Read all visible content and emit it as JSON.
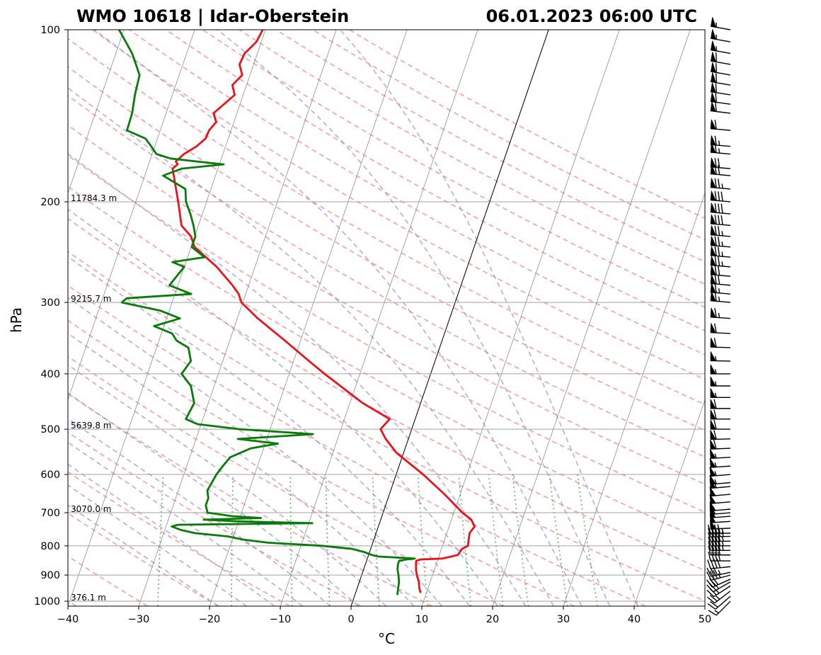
{
  "title_left": "WMO 10618 | Idar-Oberstein",
  "title_right": "06.01.2023 06:00 UTC",
  "chart_data": {
    "type": "line",
    "subtype": "skew-T log-p sounding",
    "xlabel": "°C",
    "ylabel": "hPa",
    "xlim": [
      -40,
      50
    ],
    "ylim": [
      1020,
      100
    ],
    "x_ticks": [
      -40,
      -30,
      -20,
      -10,
      0,
      10,
      20,
      30,
      40,
      50
    ],
    "y_ticks": [
      100,
      200,
      300,
      400,
      500,
      600,
      700,
      800,
      900,
      1000
    ],
    "height_labels": [
      {
        "p": 200,
        "text": "11784.3 m"
      },
      {
        "p": 300,
        "text": "9215.7 m"
      },
      {
        "p": 500,
        "text": "5639.8 m"
      },
      {
        "p": 700,
        "text": "3070.0 m"
      },
      {
        "p": 1000,
        "text": "376.1 m"
      }
    ],
    "series": [
      {
        "name": "Temperature",
        "color": "#e8141c",
        "p": [
          967,
          950,
          925,
          900,
          880,
          850,
          845,
          842,
          830,
          810,
          800,
          780,
          760,
          740,
          720,
          700,
          650,
          600,
          550,
          520,
          500,
          480,
          450,
          400,
          380,
          350,
          320,
          300,
          290,
          280,
          260,
          240,
          230,
          220,
          200,
          180,
          175,
          172,
          170,
          165,
          160,
          155,
          150,
          145,
          140,
          130,
          125,
          120,
          115,
          110,
          105,
          100
        ],
        "t": [
          9.2,
          8.8,
          8.4,
          7.8,
          7.4,
          7.0,
          7.6,
          10.6,
          12.6,
          12.9,
          13.6,
          13.4,
          13.2,
          13.6,
          12.8,
          11.2,
          7.8,
          3.8,
          -1.0,
          -3.2,
          -4.4,
          -3.6,
          -8.2,
          -15.0,
          -17.8,
          -22.2,
          -27.1,
          -30.2,
          -31.0,
          -32.3,
          -35.4,
          -39.5,
          -40.5,
          -42.4,
          -44.0,
          -45.9,
          -46.4,
          -45.9,
          -46.3,
          -45.5,
          -44.1,
          -43.2,
          -43.1,
          -42.5,
          -43.3,
          -41.2,
          -42.0,
          -41.1,
          -42.0,
          -41.8,
          -40.7,
          -40.4
        ]
      },
      {
        "name": "Dewpoint",
        "color": "#0a7a0a",
        "p": [
          975,
          950,
          925,
          900,
          880,
          862,
          850,
          845,
          842,
          835,
          830,
          820,
          810,
          800,
          790,
          780,
          770,
          760,
          750,
          740,
          735,
          730,
          725,
          720,
          715,
          710,
          700,
          680,
          660,
          640,
          600,
          580,
          560,
          540,
          530,
          520,
          510,
          500,
          490,
          480,
          450,
          420,
          400,
          380,
          360,
          350,
          340,
          330,
          320,
          310,
          300,
          295,
          290,
          280,
          260,
          255,
          250,
          240,
          230,
          220,
          210,
          200,
          190,
          180,
          175,
          172,
          170,
          168,
          165,
          160,
          155,
          150,
          140,
          130,
          120,
          110,
          100
        ],
        "t": [
          6.0,
          5.8,
          5.6,
          5.2,
          4.8,
          4.6,
          4.6,
          5.6,
          6.7,
          1.4,
          0.5,
          -0.8,
          -2.6,
          -7.0,
          -14.8,
          -18.5,
          -20.8,
          -25.6,
          -27.8,
          -29.2,
          -28.4,
          -9.5,
          -20.0,
          -25.0,
          -17.0,
          -21.1,
          -24.8,
          -25.4,
          -25.4,
          -25.9,
          -25.4,
          -24.9,
          -24.3,
          -21.8,
          -18.2,
          -24.1,
          -13.7,
          -24.3,
          -30.5,
          -32.4,
          -32.0,
          -33.3,
          -35.2,
          -34.5,
          -35.5,
          -37.5,
          -38.5,
          -41.4,
          -38.1,
          -41.3,
          -47.1,
          -46.6,
          -37.7,
          -41.2,
          -40.0,
          -41.9,
          -37.6,
          -39.9,
          -39.9,
          -40.7,
          -41.7,
          -42.9,
          -43.6,
          -47.4,
          -45.1,
          -39.4,
          -43.4,
          -47.2,
          -49.4,
          -50.5,
          -51.7,
          -54.7,
          -54.8,
          -55.3,
          -55.6,
          -57.7,
          -60.7
        ]
      }
    ],
    "wind_barbs": [
      {
        "p": 1000,
        "dir": 225,
        "kt": 15
      },
      {
        "p": 925,
        "dir": 240,
        "kt": 30
      },
      {
        "p": 900,
        "dir": 255,
        "kt": 35
      },
      {
        "p": 850,
        "dir": 270,
        "kt": 40
      },
      {
        "p": 800,
        "dir": 270,
        "kt": 45
      },
      {
        "p": 700,
        "dir": 265,
        "kt": 50
      },
      {
        "p": 600,
        "dir": 265,
        "kt": 55
      },
      {
        "p": 500,
        "dir": 270,
        "kt": 60
      },
      {
        "p": 400,
        "dir": 270,
        "kt": 55
      },
      {
        "p": 300,
        "dir": 275,
        "kt": 65
      },
      {
        "p": 250,
        "dir": 275,
        "kt": 75
      },
      {
        "p": 200,
        "dir": 275,
        "kt": 80
      },
      {
        "p": 175,
        "dir": 275,
        "kt": 70
      },
      {
        "p": 150,
        "dir": 275,
        "kt": 60
      },
      {
        "p": 125,
        "dir": 280,
        "kt": 60
      },
      {
        "p": 100,
        "dir": 280,
        "kt": 55
      }
    ]
  }
}
